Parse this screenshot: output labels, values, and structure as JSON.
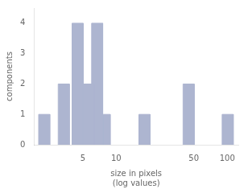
{
  "chart_data": {
    "type": "bar",
    "xlabel": "size in pixels\n(log values)",
    "ylabel": "components",
    "x": [
      1.9999,
      2.9992,
      3.9994,
      5.0003,
      5.9979,
      6.9984,
      15.9956,
      39.9945,
      89.9497
    ],
    "x_right": [
      2.5177,
      3.7757,
      5.035,
      6.2951,
      7.5509,
      8.8105,
      20.1372,
      50.35,
      113.2399
    ],
    "values": [
      1,
      2,
      4,
      2,
      4,
      1,
      1,
      2,
      1
    ],
    "color": "#adb5d0",
    "log": "x",
    "xlim": [
      1.8197,
      125.8925
    ],
    "xticks": [
      5,
      10,
      50,
      100
    ],
    "ylim": [
      0,
      4.5
    ],
    "yticks": [
      0,
      1,
      2,
      3,
      4
    ],
    "grid": false
  }
}
